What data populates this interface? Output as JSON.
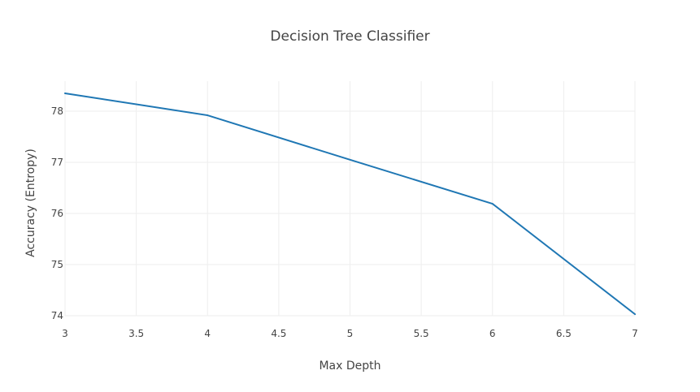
{
  "chart_data": {
    "type": "line",
    "title": "Decision Tree Classifier",
    "xlabel": "Max Depth",
    "ylabel": "Accuracy (Entropy)",
    "xlim": [
      3,
      7
    ],
    "ylim": [
      74,
      78
    ],
    "x_ticks": [
      "3",
      "3.5",
      "4",
      "4.5",
      "5",
      "5.5",
      "6",
      "6.5",
      "7"
    ],
    "y_ticks": [
      "74",
      "75",
      "76",
      "77",
      "78"
    ],
    "grid": true,
    "legend": "none",
    "series": [
      {
        "x": [
          3,
          4,
          5,
          6,
          7
        ],
        "y": [
          78.35,
          77.92,
          77.05,
          76.19,
          74.03
        ],
        "color": "#1f77b4"
      }
    ]
  }
}
